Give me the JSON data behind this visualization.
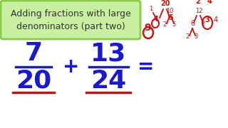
{
  "title_line1": "Adding fractions with large",
  "title_line2": "denominators (part two)",
  "title_bg": "#c8f0a0",
  "title_border": "#88cc44",
  "title_text_color": "#333333",
  "frac1_num": "7",
  "frac1_den": "20",
  "frac2_num": "13",
  "frac2_den": "24",
  "frac_color": "#1a1acc",
  "underline_color": "#cc1111",
  "plus_sign": "+",
  "equals_sign": "=",
  "bg_color": "#ffffff",
  "scribble_color": "#cc1111"
}
